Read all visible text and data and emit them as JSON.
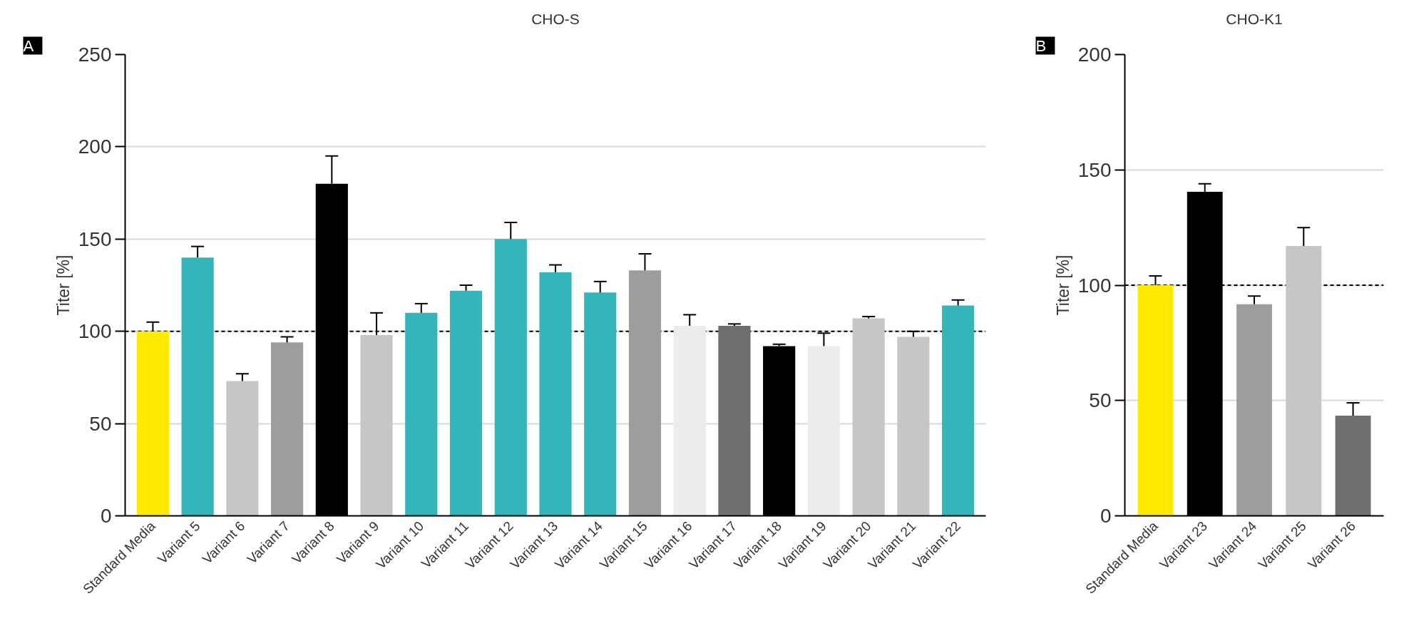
{
  "chart_data": [
    {
      "type": "bar",
      "title": "CHO-S",
      "ylabel": "Titer [%]",
      "annotations": [
        "A"
      ],
      "categories": [
        "Standard Media",
        "Variant 5",
        "Variant 6",
        "Variant 7",
        "Variant 8",
        "Variant 9",
        "Variant 10",
        "Variant 11",
        "Variant 12",
        "Variant 13",
        "Variant 14",
        "Variant 15",
        "Variant 16",
        "Variant 17",
        "Variant 18",
        "Variant 19",
        "Variant 20",
        "Variant 21",
        "Variant 22"
      ],
      "values": [
        100,
        140,
        73,
        94,
        180,
        98,
        110,
        122,
        150,
        132,
        121,
        133,
        103,
        103,
        92,
        92,
        107,
        97,
        114
      ],
      "errors": [
        [
          100,
          105
        ],
        [
          140,
          146
        ],
        [
          73,
          77
        ],
        [
          94,
          97
        ],
        [
          180,
          195
        ],
        [
          98,
          110
        ],
        [
          110,
          115
        ],
        [
          122,
          125
        ],
        [
          150,
          159
        ],
        [
          132,
          136
        ],
        [
          121,
          127
        ],
        [
          133,
          142
        ],
        [
          103,
          109
        ],
        [
          103,
          104
        ],
        [
          92,
          93
        ],
        [
          92,
          99
        ],
        [
          107,
          108
        ],
        [
          97,
          100
        ],
        [
          114,
          117
        ]
      ],
      "colors": [
        "#ffea00",
        "#33b5ba",
        "#c6c6c6",
        "#9d9d9c",
        "#000000",
        "#c6c6c6",
        "#33b5ba",
        "#33b5ba",
        "#33b5ba",
        "#33b5ba",
        "#33b5ba",
        "#9d9d9c",
        "#ececec",
        "#6f6f6f",
        "#000000",
        "#ececec",
        "#c6c6c6",
        "#c6c6c6",
        "#33b5ba"
      ],
      "ylim": [
        0,
        250
      ],
      "yticks": [
        0,
        50,
        100,
        150,
        200,
        250
      ],
      "grid": "y",
      "ref_lines": [
        {
          "axis": "y",
          "value": 100,
          "label": null,
          "line_style": "dashed",
          "color": "#000000"
        }
      ]
    },
    {
      "type": "bar",
      "title": "CHO-K1",
      "ylabel": "Titer [%]",
      "annotations": [
        "B"
      ],
      "categories": [
        "Standard Media",
        "Variant 23",
        "Variant 24",
        "Variant 25",
        "Variant 26"
      ],
      "values": [
        100,
        140.5,
        91.7,
        117,
        43.4
      ],
      "errors": [
        [
          100,
          104
        ],
        [
          140.5,
          144
        ],
        [
          91.7,
          95.3
        ],
        [
          117,
          125
        ],
        [
          43.4,
          49
        ]
      ],
      "colors": [
        "#ffea00",
        "#000000",
        "#9d9d9c",
        "#c6c6c6",
        "#6f6f6f"
      ],
      "ylim": [
        0,
        200
      ],
      "yticks": [
        0,
        50,
        100,
        150,
        200
      ],
      "grid": "y",
      "ref_lines": [
        {
          "axis": "y",
          "value": 100,
          "label": null,
          "line_style": "dashed",
          "color": "#000000"
        }
      ]
    }
  ]
}
